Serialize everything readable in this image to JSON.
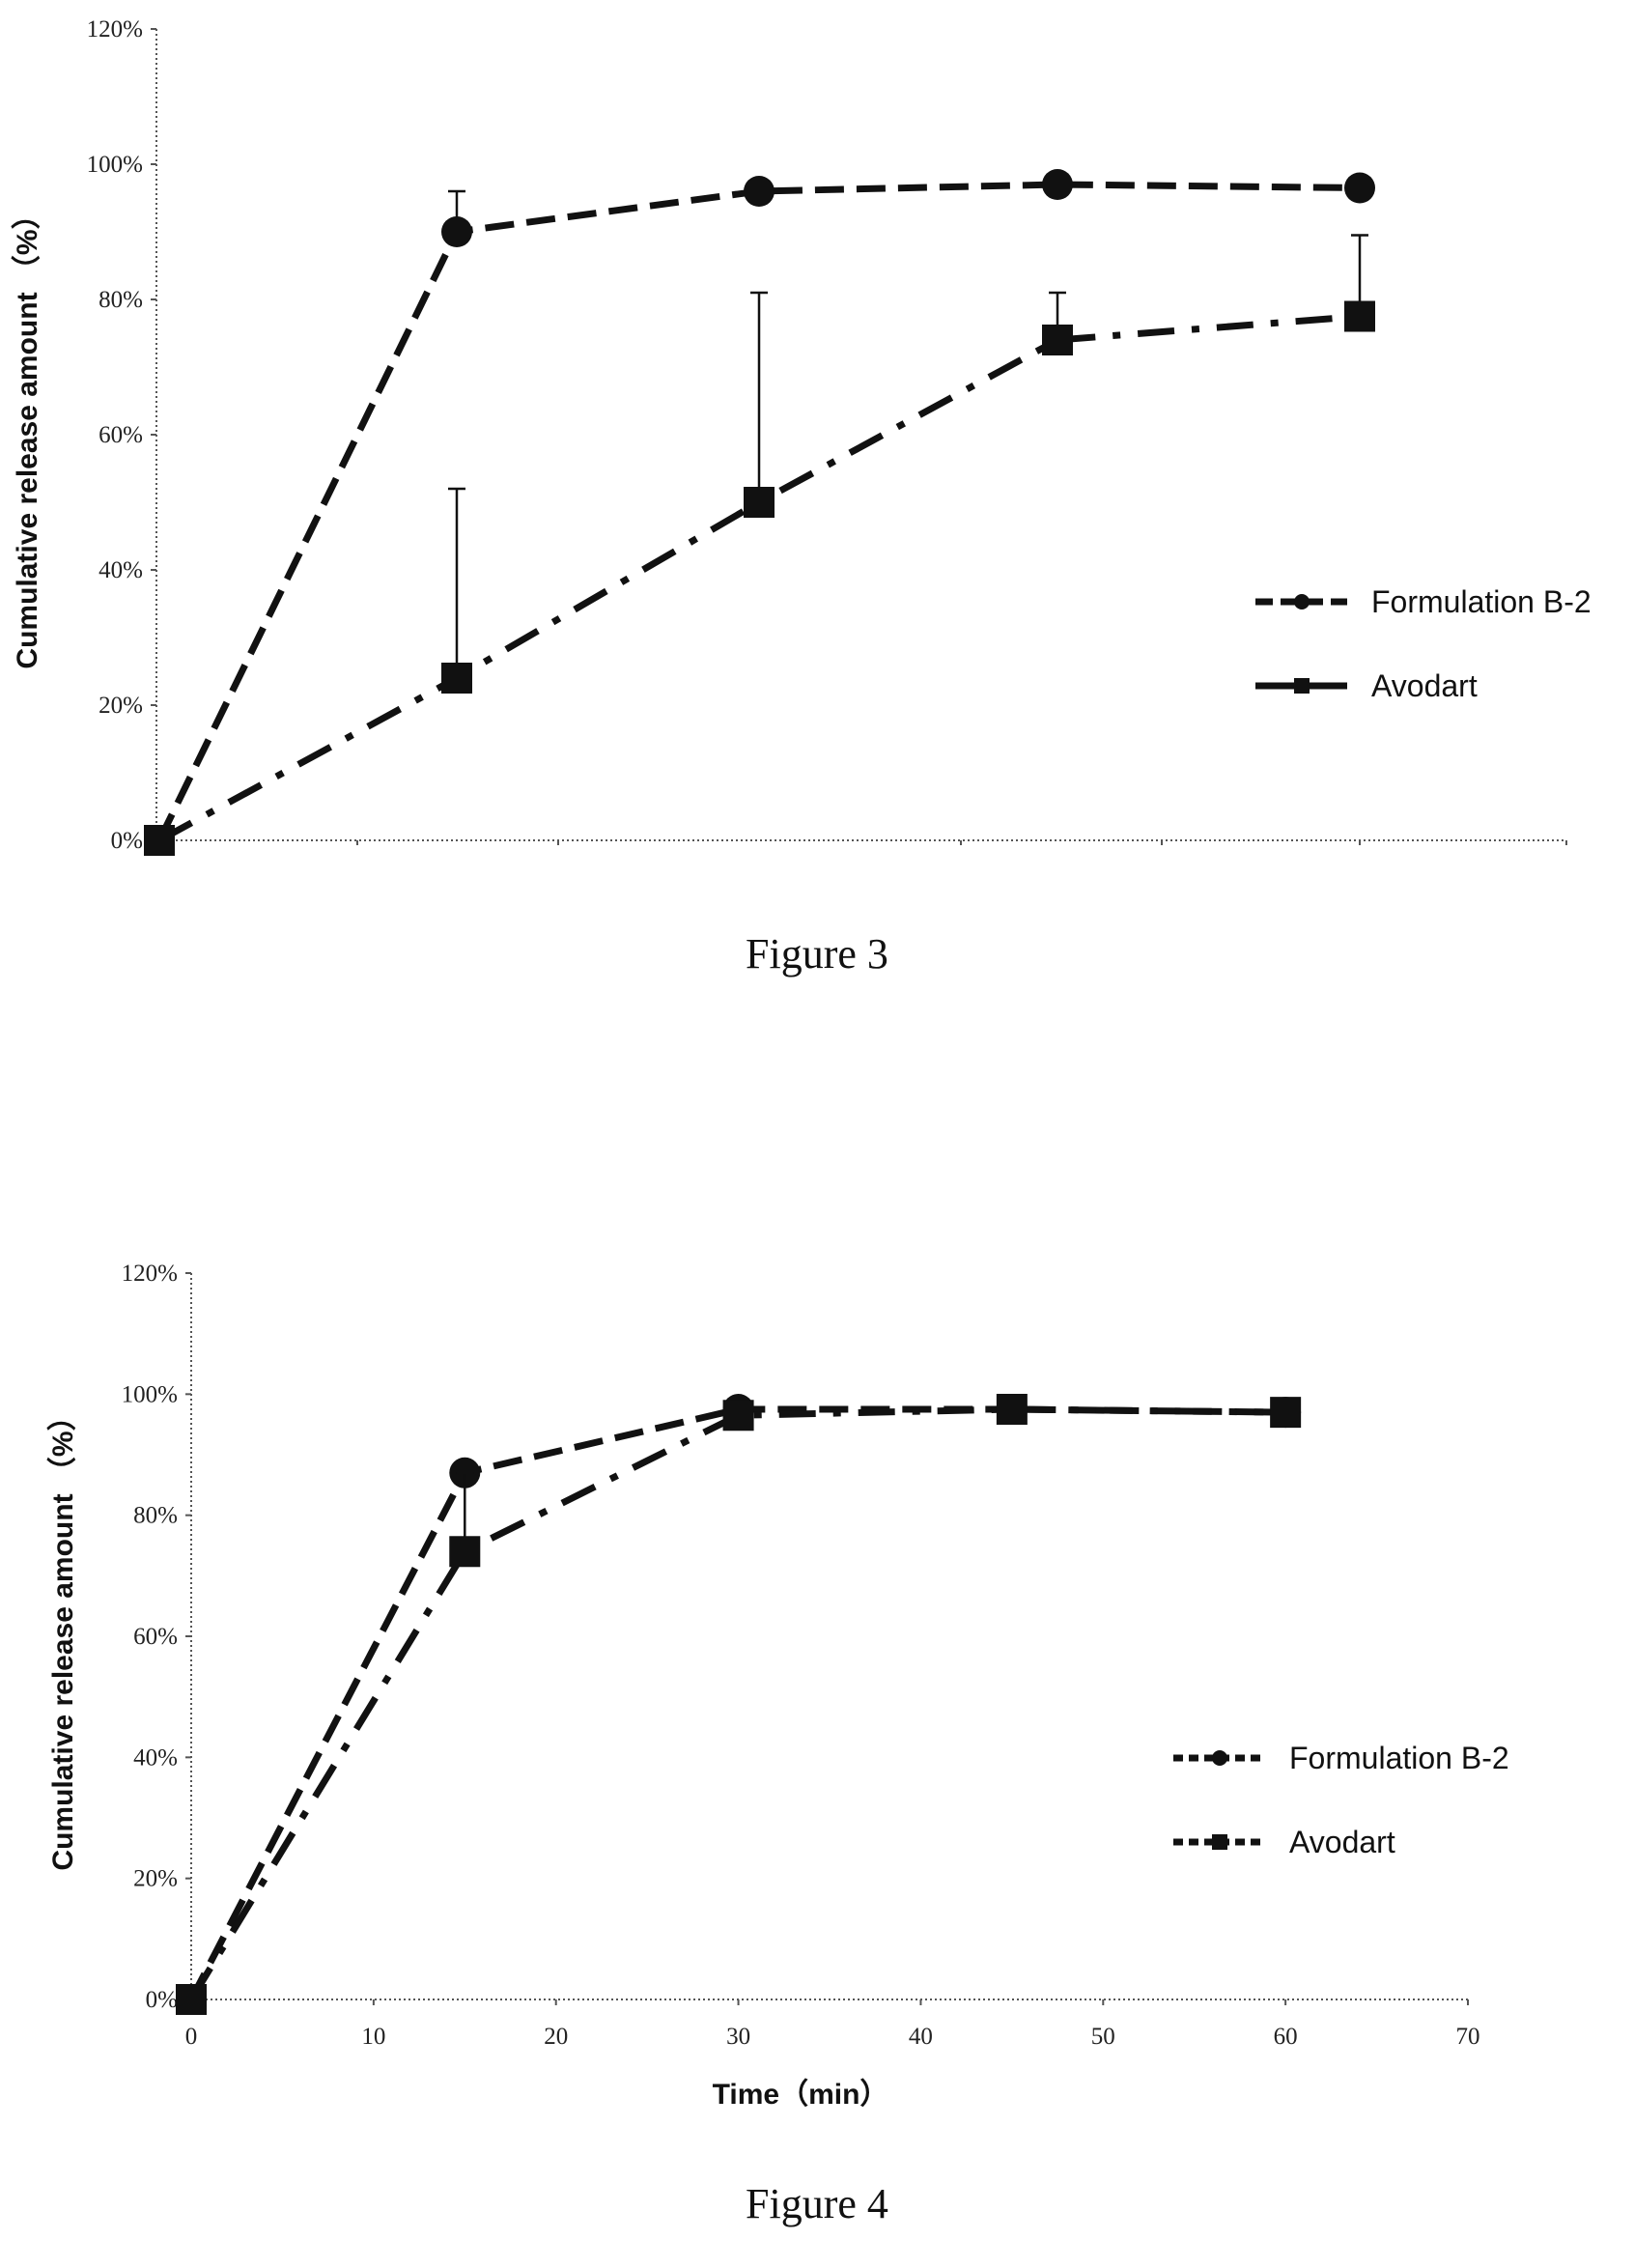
{
  "chart_data": [
    {
      "type": "line",
      "caption": "Figure 3",
      "ylabel": "Cumulative release amount （%）",
      "xlabel": "",
      "x": [
        0,
        15,
        30,
        45,
        60
      ],
      "x_tick_labels": [],
      "xlim": [
        0,
        70
      ],
      "ylim": [
        0,
        120
      ],
      "y_ticks": [
        0,
        20,
        40,
        60,
        80,
        100,
        120
      ],
      "y_tick_labels": [
        "0%",
        "20%",
        "40%",
        "60%",
        "80%",
        "100%",
        "120%"
      ],
      "grid": false,
      "legend_position": "right",
      "series": [
        {
          "name": "Formulation B-2",
          "values": [
            0,
            90,
            96,
            97,
            96.5
          ],
          "errors": [
            0,
            6,
            0,
            0,
            0
          ],
          "marker": "circle",
          "dash": "long-dash",
          "color": "#111111"
        },
        {
          "name": "Avodart",
          "values": [
            0,
            24,
            50,
            74,
            77.5
          ],
          "errors": [
            0,
            28,
            31,
            7,
            12
          ],
          "marker": "square",
          "dash": "dash-dot",
          "color": "#111111"
        }
      ]
    },
    {
      "type": "line",
      "caption": "Figure 4",
      "ylabel": "Cumulative release amount （%）",
      "xlabel": "Time（min）",
      "x": [
        0,
        15,
        30,
        45,
        60
      ],
      "x_ticks": [
        0,
        10,
        20,
        30,
        40,
        50,
        60,
        70
      ],
      "x_tick_labels": [
        "0",
        "10",
        "20",
        "30",
        "40",
        "50",
        "60",
        "70"
      ],
      "xlim": [
        0,
        70
      ],
      "ylim": [
        0,
        120
      ],
      "y_ticks": [
        0,
        20,
        40,
        60,
        80,
        100,
        120
      ],
      "y_tick_labels": [
        "0%",
        "20%",
        "40%",
        "60%",
        "80%",
        "100%",
        "120%"
      ],
      "grid": false,
      "legend_position": "right",
      "series": [
        {
          "name": "Formulation B-2",
          "values": [
            0,
            87,
            97.5,
            97.5,
            97
          ],
          "errors": [
            0,
            0,
            0,
            0,
            0
          ],
          "marker": "circle",
          "dash": "long-dash",
          "color": "#111111"
        },
        {
          "name": "Avodart",
          "values": [
            0,
            74,
            96.5,
            97.5,
            97
          ],
          "errors": [
            0,
            13,
            0,
            0,
            0
          ],
          "marker": "square",
          "dash": "dash-dot",
          "color": "#111111"
        }
      ]
    }
  ]
}
